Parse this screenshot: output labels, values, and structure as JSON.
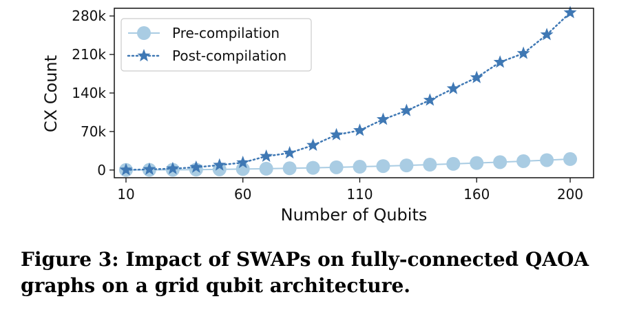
{
  "caption": "Figure 3: Impact of SWAPs on fully-connected QAOA graphs on a grid qubit architecture.",
  "chart_data": {
    "type": "line",
    "xlabel": "Number of Qubits",
    "ylabel": "CX Count",
    "xlim": [
      5,
      210
    ],
    "ylim": [
      -14000,
      294000
    ],
    "x_ticks": [
      10,
      60,
      110,
      160,
      200
    ],
    "x_tick_labels": [
      "10",
      "60",
      "110",
      "160",
      "200"
    ],
    "y_ticks": [
      0,
      70000,
      140000,
      210000,
      280000
    ],
    "y_tick_labels": [
      "0",
      "70k",
      "140k",
      "210k",
      "280k"
    ],
    "grid": false,
    "legend_position": "top-left",
    "x": [
      10,
      20,
      30,
      40,
      50,
      60,
      70,
      80,
      90,
      100,
      110,
      120,
      130,
      140,
      150,
      160,
      170,
      180,
      190,
      200
    ],
    "series": [
      {
        "name": "Pre-compilation",
        "color": "#a9cce3",
        "marker": "circle",
        "line_style": "solid",
        "values": [
          45,
          190,
          435,
          780,
          1225,
          1770,
          2415,
          3160,
          4005,
          4950,
          5995,
          7140,
          8385,
          9730,
          11175,
          12720,
          14365,
          16110,
          17955,
          19900
        ]
      },
      {
        "name": "Post-compilation",
        "color": "#3f78b4",
        "marker": "star",
        "line_style": "dotted",
        "values": [
          300,
          1200,
          2500,
          5000,
          9000,
          13500,
          25000,
          31000,
          45000,
          64000,
          72000,
          92000,
          108000,
          127000,
          148000,
          168000,
          196000,
          212000,
          246000,
          286000
        ]
      }
    ]
  }
}
